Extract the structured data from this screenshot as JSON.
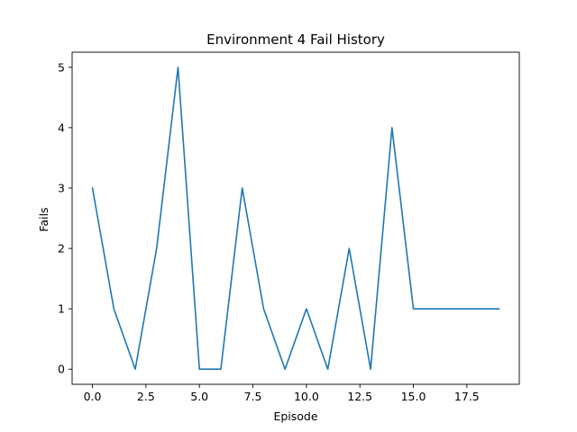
{
  "chart_data": {
    "type": "line",
    "title": "Environment 4 Fail History",
    "xlabel": "Episode",
    "ylabel": "Fails",
    "x": [
      0,
      1,
      2,
      3,
      4,
      5,
      6,
      7,
      8,
      9,
      10,
      11,
      12,
      13,
      14,
      15,
      16,
      17,
      18,
      19
    ],
    "series": [
      {
        "values": [
          3,
          1,
          0,
          2,
          5,
          0,
          0,
          3,
          1,
          0,
          1,
          0,
          2,
          0,
          4,
          1,
          1,
          1,
          1,
          1
        ],
        "color": "#1f77b4"
      }
    ],
    "xlim": [
      -0.95,
      19.95
    ],
    "ylim": [
      -0.25,
      5.25
    ],
    "xticks": [
      0.0,
      2.5,
      5.0,
      7.5,
      10.0,
      12.5,
      15.0,
      17.5
    ],
    "xtick_labels": [
      "0.0",
      "2.5",
      "5.0",
      "7.5",
      "10.0",
      "12.5",
      "15.0",
      "17.5"
    ],
    "yticks": [
      0,
      1,
      2,
      3,
      4,
      5
    ],
    "ytick_labels": [
      "0",
      "1",
      "2",
      "3",
      "4",
      "5"
    ],
    "grid": false,
    "legend": false
  }
}
